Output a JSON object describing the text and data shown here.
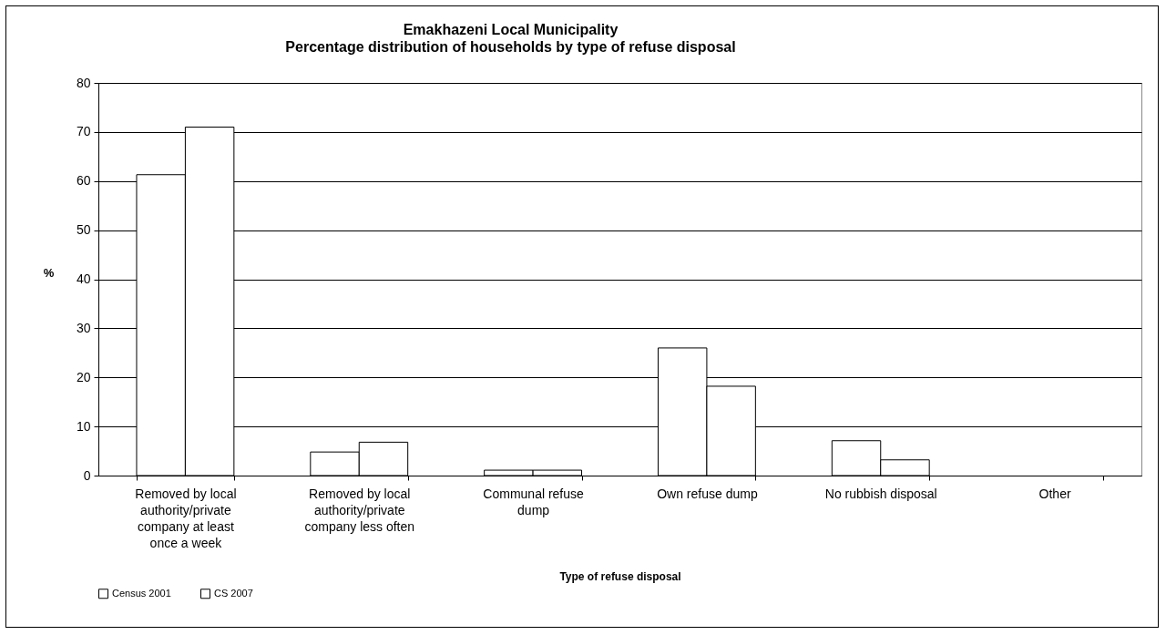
{
  "chart_data": {
    "type": "bar",
    "title": "Emakhazeni Local Municipality",
    "subtitle": "Percentage distribution of households by type of refuse disposal",
    "xlabel": "Type of refuse disposal",
    "ylabel": "%",
    "categories": [
      "Removed by local authority/private company at least once a week",
      "Removed by local authority/private company less often",
      "Communal refuse dump",
      "Own refuse dump",
      "No rubbish disposal",
      "Other"
    ],
    "series": [
      {
        "name": "Census 2001",
        "color": "#ffffff",
        "values": [
          61.3,
          4.8,
          1.1,
          26.0,
          7.1,
          null
        ]
      },
      {
        "name": "CS 2007",
        "color": "#ffffff",
        "values": [
          71.0,
          6.8,
          1.1,
          18.2,
          3.2,
          null
        ]
      }
    ],
    "ylim": [
      0,
      80
    ],
    "yticks": [
      0,
      10,
      20,
      30,
      40,
      50,
      60,
      70,
      80
    ],
    "grid": "y",
    "legend": "bottom"
  }
}
